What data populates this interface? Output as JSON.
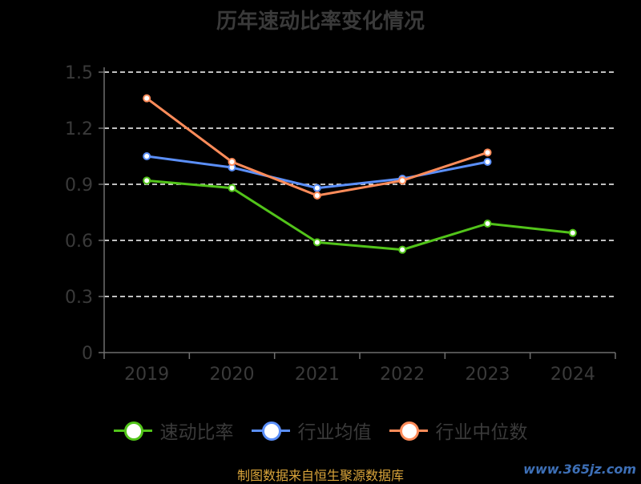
{
  "title": "历年速动比率变化情况",
  "footer": "制图数据来自恒生聚源数据库",
  "watermark": "www.365jz.com",
  "colors": {
    "background": "#000000",
    "axis": "#6e6e6e",
    "grid": "#ffffff",
    "text": "#3a3a3a"
  },
  "chart_data": {
    "type": "line",
    "title": "历年速动比率变化情况",
    "categories": [
      "2019",
      "2020",
      "2021",
      "2022",
      "2023",
      "2024"
    ],
    "y_ticks": [
      "0",
      "0.3",
      "0.6",
      "0.9",
      "1.2",
      "1.5"
    ],
    "ylim": [
      0,
      1.5
    ],
    "grid": true,
    "legend_position": "bottom",
    "series": [
      {
        "name": "速动比率",
        "color": "#52c41a",
        "values": [
          0.92,
          0.88,
          0.59,
          0.55,
          0.69,
          0.64
        ]
      },
      {
        "name": "行业均值",
        "color": "#5b8ff9",
        "values": [
          1.05,
          0.99,
          0.88,
          0.93,
          1.02,
          null
        ]
      },
      {
        "name": "行业中位数",
        "color": "#ff8c5a",
        "values": [
          1.36,
          1.02,
          0.84,
          0.92,
          1.07,
          null
        ]
      }
    ]
  }
}
